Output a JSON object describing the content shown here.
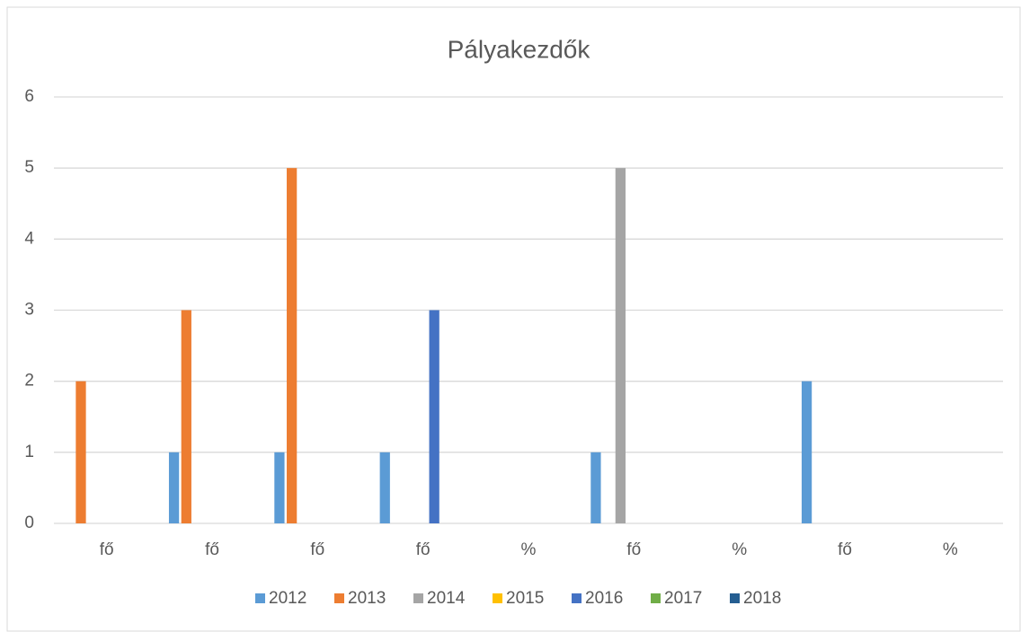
{
  "chart_data": {
    "type": "bar",
    "title": "Pályakezdők",
    "categories": [
      "fő",
      "fő",
      "fő",
      "fő",
      "%",
      "fő",
      "%",
      "fő",
      "%"
    ],
    "series": [
      {
        "name": "2012",
        "color": "#5b9bd5",
        "values": [
          0,
          1,
          1,
          1,
          0,
          1,
          0,
          2,
          0
        ]
      },
      {
        "name": "2013",
        "color": "#ed7d31",
        "values": [
          2,
          3,
          5,
          0,
          0,
          0,
          0,
          0,
          0
        ]
      },
      {
        "name": "2014",
        "color": "#a5a5a5",
        "values": [
          0,
          0,
          0,
          0,
          0,
          5,
          0,
          0,
          0
        ]
      },
      {
        "name": "2015",
        "color": "#ffc000",
        "values": [
          0,
          0,
          0,
          0,
          0,
          0,
          0,
          0,
          0
        ]
      },
      {
        "name": "2016",
        "color": "#4472c4",
        "values": [
          0,
          0,
          0,
          3,
          0,
          0,
          0,
          0,
          0
        ]
      },
      {
        "name": "2017",
        "color": "#70ad47",
        "values": [
          0,
          0,
          0,
          0,
          0,
          0,
          0,
          0,
          0
        ]
      },
      {
        "name": "2018",
        "color": "#255e91",
        "values": [
          0,
          0,
          0,
          0,
          0,
          0,
          0,
          0,
          0
        ]
      }
    ],
    "ylim": [
      0,
      6
    ],
    "yticks": [
      0,
      1,
      2,
      3,
      4,
      5,
      6
    ],
    "grid": true,
    "legend": "bottom"
  }
}
